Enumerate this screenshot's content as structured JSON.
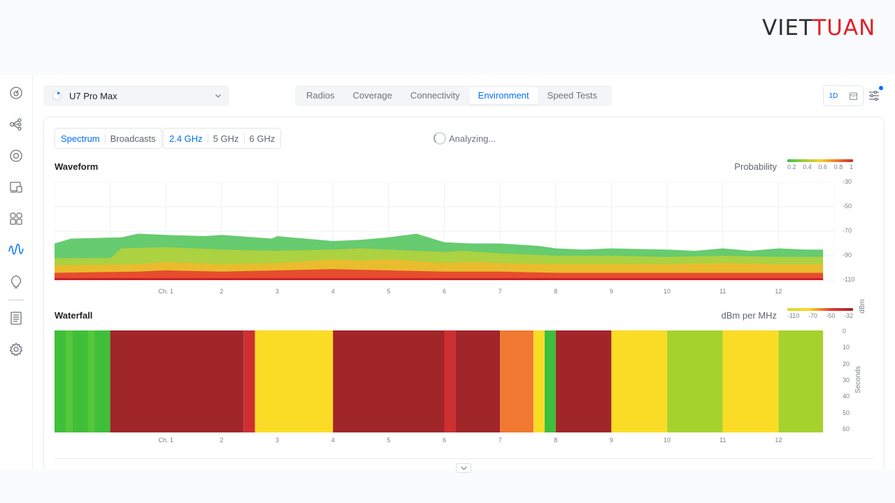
{
  "brand": {
    "part1": "VIET",
    "part2": "TUAN"
  },
  "rail": {
    "items": [
      {
        "name": "dashboard-icon"
      },
      {
        "name": "topology-icon"
      },
      {
        "name": "devices-icon"
      },
      {
        "name": "clients-icon"
      },
      {
        "name": "apps-icon"
      },
      {
        "name": "radio-waves-icon"
      },
      {
        "name": "insights-icon"
      },
      {
        "name": "logs-icon"
      },
      {
        "name": "settings-icon"
      }
    ],
    "active_index": 5
  },
  "device_select": {
    "label": "U7 Pro Max"
  },
  "tabs": [
    {
      "label": "Radios"
    },
    {
      "label": "Coverage"
    },
    {
      "label": "Connectivity"
    },
    {
      "label": "Environment",
      "active": true
    },
    {
      "label": "Speed Tests"
    }
  ],
  "toolbar": {
    "view_label": "1D"
  },
  "view_toggle": {
    "spectrum": "Spectrum",
    "broadcasts": "Broadcasts"
  },
  "bands": {
    "b24": "2.4 GHz",
    "b5": "5 GHz",
    "b6": "6 GHz",
    "active": "2.4 GHz"
  },
  "status": {
    "text": "Analyzing..."
  },
  "waveform": {
    "title": "Waveform",
    "legend_label": "Probability",
    "legend_ticks": [
      "0.2",
      "0.4",
      "0.6",
      "0.8",
      "1"
    ],
    "y_ticks": [
      "-30",
      "-50",
      "-70",
      "-90",
      "-110"
    ],
    "y_title": "dBm"
  },
  "waterfall": {
    "title": "Waterfall",
    "legend_label": "dBm per MHz",
    "legend_ticks": [
      "-110",
      "-70",
      "-50",
      "-32"
    ],
    "y_ticks": [
      "0",
      "10",
      "20",
      "30",
      "40",
      "50",
      "60"
    ],
    "y_title": "Seconds"
  },
  "channels": [
    "Ch. 1",
    "2",
    "3",
    "4",
    "5",
    "6",
    "7",
    "8",
    "9",
    "10",
    "11",
    "12"
  ],
  "colors": {
    "accent": "#006fff",
    "prob_gradient": [
      "#3fbf4a",
      "#9ccc3a",
      "#f2d22a",
      "#f07a2a",
      "#d62a2a"
    ],
    "dbm_gradient": [
      "#d8d838",
      "#f6da22",
      "#e83a32",
      "#a1262a"
    ]
  },
  "chart_data": [
    {
      "type": "area",
      "title": "Waveform",
      "xlabel": "",
      "ylabel": "dBm",
      "ylim": [
        -110,
        -30
      ],
      "categories": [
        "Ch. 1",
        "2",
        "3",
        "4",
        "5",
        "6",
        "7",
        "8",
        "9",
        "10",
        "11",
        "12"
      ],
      "x_range": [
        -1,
        13
      ],
      "series": [
        {
          "x": [
            -1,
            -0.7,
            0.2,
            0.5,
            1,
            1.7,
            2,
            2.9,
            3,
            4,
            4.5,
            5,
            5.5,
            6,
            6.5,
            7,
            7.7,
            8,
            8.5,
            9,
            10,
            10.5,
            11,
            11.5,
            12,
            12.5,
            12.8
          ],
          "values": [
            -80,
            -76,
            -75,
            -72,
            -73,
            -74,
            -73,
            -76,
            -74,
            -78,
            -77,
            -75,
            -72,
            -79,
            -80,
            -80,
            -82,
            -84,
            -85,
            -84,
            -85,
            -86,
            -84,
            -86,
            -84,
            -85,
            -85
          ]
        },
        {
          "x": [
            -1,
            0,
            0.2,
            1,
            1.5,
            2,
            3,
            4,
            4.5,
            5,
            5.5,
            6,
            6.3,
            7,
            7.5,
            8,
            9,
            10,
            11,
            12,
            12.8
          ],
          "values": [
            -92,
            -92,
            -84,
            -83,
            -84,
            -85,
            -86,
            -85,
            -84,
            -85,
            -86,
            -87,
            -86,
            -88,
            -89,
            -90,
            -90,
            -91,
            -90,
            -91,
            -91
          ]
        },
        {
          "x": [
            -1,
            0.5,
            1,
            2,
            3,
            4,
            4.5,
            5,
            6,
            6.5,
            7,
            8,
            9,
            10,
            11,
            12,
            12.8
          ],
          "values": [
            -98,
            -97,
            -95,
            -97,
            -96,
            -93,
            -94,
            -93,
            -96,
            -95,
            -96,
            -97,
            -97,
            -97,
            -96,
            -97,
            -97
          ]
        },
        {
          "x": [
            -1,
            0.5,
            1,
            2,
            3,
            4,
            5,
            6,
            7,
            8,
            9,
            10,
            11,
            12,
            12.8
          ],
          "values": [
            -104,
            -103,
            -102,
            -103,
            -102,
            -101,
            -102,
            -103,
            -103,
            -104,
            -104,
            -104,
            -104,
            -104,
            -104
          ]
        }
      ]
    },
    {
      "type": "heatmap",
      "title": "Waterfall",
      "ylabel": "Seconds",
      "ylim": [
        0,
        60
      ],
      "categories": [
        "Ch. 1",
        "2",
        "3",
        "4",
        "5",
        "6",
        "7",
        "8",
        "9",
        "10",
        "11",
        "12"
      ],
      "x_range": [
        -1,
        13
      ],
      "bands": [
        {
          "x0": -1,
          "x1": 0.0,
          "dbm": -100
        },
        {
          "x0": 0.0,
          "x1": 2.4,
          "dbm": -32
        },
        {
          "x0": 2.4,
          "x1": 2.6,
          "dbm": -40
        },
        {
          "x0": 2.6,
          "x1": 4.0,
          "dbm": -75
        },
        {
          "x0": 4.0,
          "x1": 6.0,
          "dbm": -32
        },
        {
          "x0": 6.0,
          "x1": 6.2,
          "dbm": -40
        },
        {
          "x0": 6.2,
          "x1": 7.0,
          "dbm": -32
        },
        {
          "x0": 7.0,
          "x1": 7.6,
          "dbm": -55
        },
        {
          "x0": 7.6,
          "x1": 7.8,
          "dbm": -75
        },
        {
          "x0": 7.8,
          "x1": 8.0,
          "dbm": -95
        },
        {
          "x0": 8.0,
          "x1": 9.0,
          "dbm": -32
        },
        {
          "x0": 9.0,
          "x1": 10.0,
          "dbm": -75
        },
        {
          "x0": 10.0,
          "x1": 11.0,
          "dbm": -92
        },
        {
          "x0": 11.0,
          "x1": 12.0,
          "dbm": -75
        },
        {
          "x0": 12.0,
          "x1": 12.8,
          "dbm": -92
        }
      ]
    }
  ]
}
